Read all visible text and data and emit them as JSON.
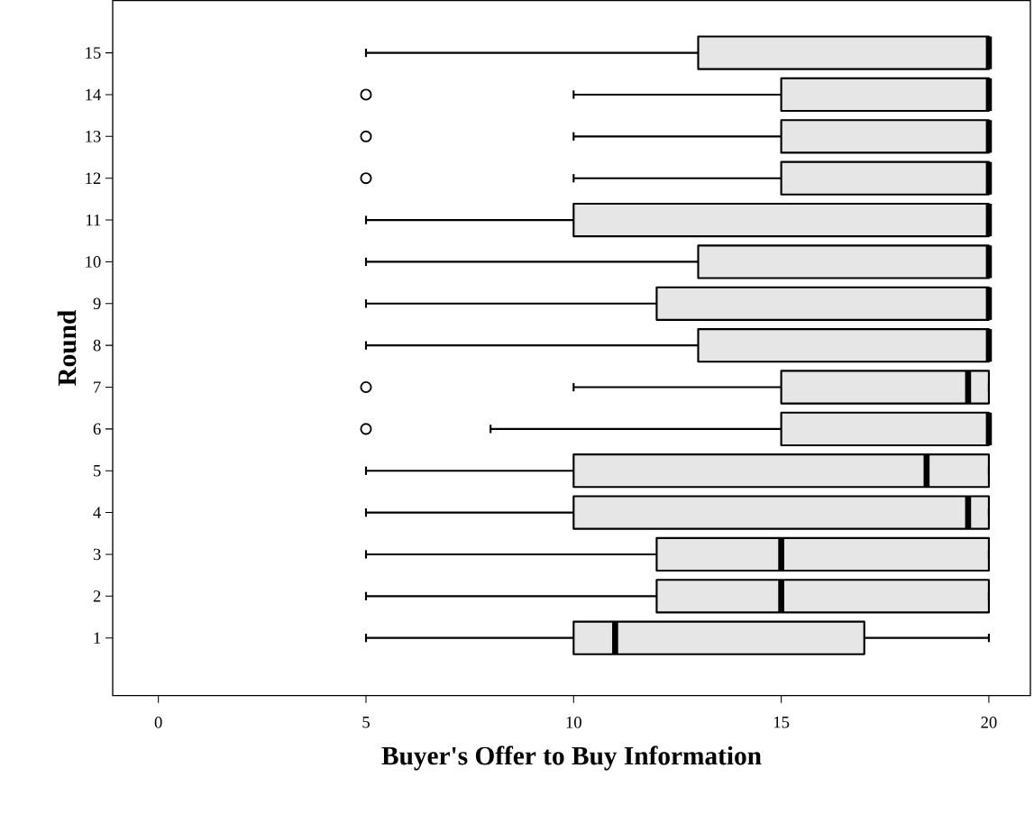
{
  "chart_data": {
    "type": "box",
    "orientation": "horizontal",
    "xlabel": "Buyer's Offer to Buy Information",
    "ylabel": "Round",
    "color": "#e6e6e6",
    "categories": [
      "15",
      "14",
      "13",
      "12",
      "11",
      "10",
      "9",
      "8",
      "7",
      "6",
      "5",
      "4",
      "3",
      "2",
      "1"
    ],
    "boxes": [
      {
        "low": 5,
        "q1": 13,
        "median": 20,
        "q3": 20,
        "high": 20
      },
      {
        "low": 10,
        "q1": 15,
        "median": 20,
        "q3": 20,
        "high": 20,
        "outliers": [
          5
        ]
      },
      {
        "low": 10,
        "q1": 15,
        "median": 20,
        "q3": 20,
        "high": 20,
        "outliers": [
          5
        ]
      },
      {
        "low": 10,
        "q1": 15,
        "median": 20,
        "q3": 20,
        "high": 20,
        "outliers": [
          5
        ]
      },
      {
        "low": 5,
        "q1": 10,
        "median": 20,
        "q3": 20,
        "high": 20
      },
      {
        "low": 5,
        "q1": 13,
        "median": 20,
        "q3": 20,
        "high": 20
      },
      {
        "low": 5,
        "q1": 12,
        "median": 20,
        "q3": 20,
        "high": 20
      },
      {
        "low": 5,
        "q1": 13,
        "median": 20,
        "q3": 20,
        "high": 20
      },
      {
        "low": 10,
        "q1": 15,
        "median": 19.5,
        "q3": 20,
        "high": 20,
        "outliers": [
          5
        ]
      },
      {
        "low": 8,
        "q1": 15,
        "median": 20,
        "q3": 20,
        "high": 20,
        "outliers": [
          5
        ]
      },
      {
        "low": 5,
        "q1": 10,
        "median": 18.5,
        "q3": 20,
        "high": 20
      },
      {
        "low": 5,
        "q1": 10,
        "median": 19.5,
        "q3": 20,
        "high": 20
      },
      {
        "low": 5,
        "q1": 12,
        "median": 15,
        "q3": 20,
        "high": 20
      },
      {
        "low": 5,
        "q1": 12,
        "median": 15,
        "q3": 20,
        "high": 20
      },
      {
        "low": 5,
        "q1": 10,
        "median": 11,
        "q3": 17,
        "high": 20
      }
    ],
    "xlim": [
      -1.1,
      21
    ],
    "xticks": [
      0,
      5,
      10,
      15,
      20
    ],
    "grid": false
  }
}
